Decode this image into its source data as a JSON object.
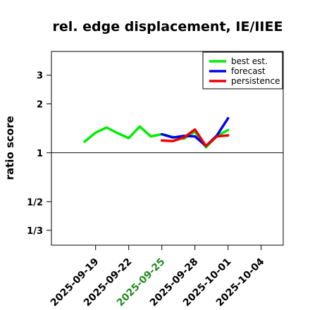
{
  "chart_data": {
    "type": "line",
    "title": "rel. edge displacement, IE/IIEE",
    "ylabel": "ratio score",
    "xlabel": "",
    "y_scale": "log",
    "ylim": [
      0.27,
      4.2
    ],
    "xlim": [
      "2025-09-15",
      "2025-10-06"
    ],
    "y_ticks": [
      {
        "value": 0.3333,
        "label": "1/3"
      },
      {
        "value": 0.5,
        "label": "1/2"
      },
      {
        "value": 1,
        "label": "1"
      },
      {
        "value": 2,
        "label": "2"
      },
      {
        "value": 3,
        "label": "3"
      }
    ],
    "x_ticks": [
      {
        "date": "2025-09-19",
        "label": "2025-09-19",
        "color": "#000000"
      },
      {
        "date": "2025-09-22",
        "label": "2025-09-22",
        "color": "#000000"
      },
      {
        "date": "2025-09-25",
        "label": "2025-09-25",
        "color": "#228B22"
      },
      {
        "date": "2025-09-28",
        "label": "2025-09-28",
        "color": "#000000"
      },
      {
        "date": "2025-10-01",
        "label": "2025-10-01",
        "color": "#000000"
      },
      {
        "date": "2025-10-04",
        "label": "2025-10-04",
        "color": "#000000"
      }
    ],
    "reference_line": 1,
    "grid": false,
    "legend_position": "top-right",
    "series": [
      {
        "name": "best est.",
        "color": "#00ee00",
        "points": [
          [
            "2025-09-18",
            1.17
          ],
          [
            "2025-09-19",
            1.33
          ],
          [
            "2025-09-20",
            1.43
          ],
          [
            "2025-09-21",
            1.32
          ],
          [
            "2025-09-22",
            1.23
          ],
          [
            "2025-09-23",
            1.45
          ],
          [
            "2025-09-24",
            1.26
          ],
          [
            "2025-09-25",
            1.3
          ],
          [
            "2025-09-26",
            1.25
          ],
          [
            "2025-09-27",
            1.22
          ],
          [
            "2025-09-28",
            1.35
          ],
          [
            "2025-09-29",
            1.08
          ],
          [
            "2025-09-30",
            1.27
          ],
          [
            "2025-10-01",
            1.38
          ]
        ]
      },
      {
        "name": "forecast",
        "color": "#0000ee",
        "points": [
          [
            "2025-09-25",
            1.3
          ],
          [
            "2025-09-26",
            1.24
          ],
          [
            "2025-09-27",
            1.27
          ],
          [
            "2025-09-28",
            1.26
          ],
          [
            "2025-09-29",
            1.1
          ],
          [
            "2025-09-30",
            1.28
          ],
          [
            "2025-10-01",
            1.63
          ]
        ]
      },
      {
        "name": "persistence",
        "color": "#ee0000",
        "points": [
          [
            "2025-09-25",
            1.19
          ],
          [
            "2025-09-26",
            1.18
          ],
          [
            "2025-09-27",
            1.24
          ],
          [
            "2025-09-28",
            1.39
          ],
          [
            "2025-09-29",
            1.1
          ],
          [
            "2025-09-30",
            1.26
          ],
          [
            "2025-10-01",
            1.28
          ]
        ]
      }
    ]
  }
}
